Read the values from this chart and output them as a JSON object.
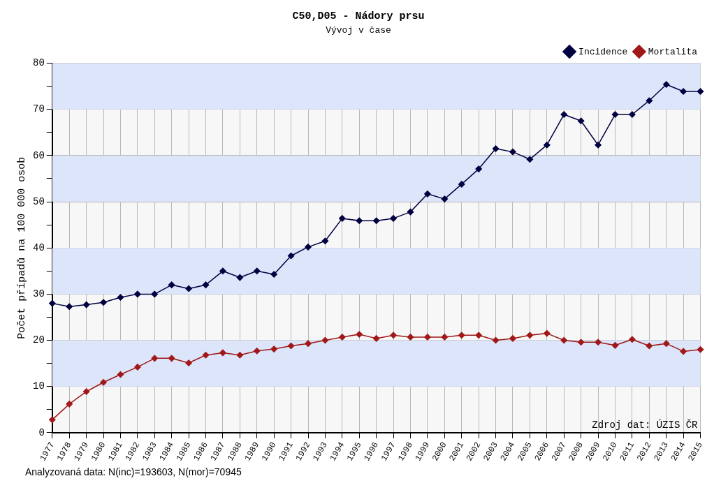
{
  "chart_data": {
    "type": "line",
    "title": "C50,D05 - Nádory prsu",
    "subtitle": "Vývoj v čase",
    "ylabel": "Počet případů na 100 000 osob",
    "categories": [
      "1977",
      "1978",
      "1979",
      "1980",
      "1981",
      "1982",
      "1983",
      "1984",
      "1985",
      "1986",
      "1987",
      "1988",
      "1989",
      "1990",
      "1991",
      "1992",
      "1993",
      "1994",
      "1995",
      "1996",
      "1997",
      "1998",
      "1999",
      "2000",
      "2001",
      "2002",
      "2003",
      "2004",
      "2005",
      "2006",
      "2007",
      "2008",
      "2009",
      "2010",
      "2011",
      "2012",
      "2013",
      "2014",
      "2015"
    ],
    "series": [
      {
        "name": "Incidence",
        "color": "#000040",
        "values": [
          28,
          27.3,
          27.7,
          28.2,
          29.3,
          30,
          30,
          32,
          31.2,
          32,
          35,
          33.6,
          35,
          34.3,
          38.3,
          40.2,
          41.5,
          46.4,
          45.9,
          45.9,
          46.4,
          47.8,
          51.7,
          50.6,
          53.8,
          57.1,
          61.5,
          60.8,
          59.2,
          62.3,
          68.9,
          67.5,
          62.3,
          68.9,
          68.9,
          71.9,
          75.4,
          73.9,
          73.9
        ]
      },
      {
        "name": "Mortalita",
        "color": "#a01818",
        "values": [
          2.8,
          6.2,
          8.9,
          10.9,
          12.6,
          14.2,
          16.1,
          16.1,
          15.1,
          16.8,
          17.3,
          16.8,
          17.7,
          18.1,
          18.8,
          19.3,
          20,
          20.7,
          21.3,
          20.4,
          21.1,
          20.7,
          20.7,
          20.7,
          21.1,
          21.1,
          20,
          20.4,
          21.1,
          21.5,
          20,
          19.6,
          19.6,
          18.9,
          20.2,
          18.8,
          19.3,
          17.6,
          18
        ]
      }
    ],
    "ylim": [
      0,
      80
    ],
    "yticks": [
      0,
      {
        "value": 5,
        "label": null
      },
      10,
      {
        "value": 15,
        "label": null
      },
      20,
      {
        "value": 25,
        "label": null
      },
      30,
      {
        "value": 35,
        "label": null
      },
      40,
      {
        "value": 45,
        "label": null
      },
      50,
      {
        "value": 55,
        "label": null
      },
      60,
      {
        "value": 65,
        "label": null
      },
      70,
      {
        "value": 75,
        "label": null
      },
      80
    ],
    "bands": [
      {
        "axis": "y",
        "from": 10,
        "to": 20,
        "color": "#dce5fa"
      },
      {
        "axis": "y",
        "from": 30,
        "to": 40,
        "color": "#dce5fa"
      },
      {
        "axis": "y",
        "from": 50,
        "to": 60,
        "color": "#dce5fa"
      },
      {
        "axis": "y",
        "from": 70,
        "to": 80,
        "color": "#dce5fa"
      }
    ],
    "grid": true,
    "legend": "top right",
    "marker": "diamond",
    "line_style": "solid",
    "annotations": [
      "Zdroj dat: ÚZIS ČR",
      "Analyzovaná data: N(inc)=193603, N(mor)=70945"
    ]
  }
}
